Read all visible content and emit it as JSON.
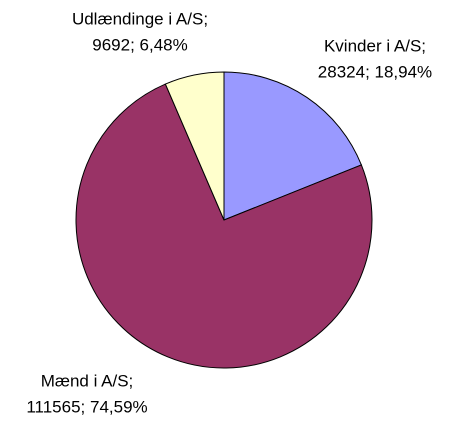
{
  "chart_data": {
    "type": "pie",
    "categories": [
      "Kvinder i A/S;",
      "Mænd i A/S;",
      "Udlændinge i A/S;"
    ],
    "values": [
      28324,
      111565,
      9692
    ],
    "value_labels": [
      "28324; 18,94%",
      "111565; 74,59%",
      "9692; 6,48%"
    ],
    "colors": [
      "#9999ff",
      "#993366",
      "#ffffcc"
    ]
  }
}
